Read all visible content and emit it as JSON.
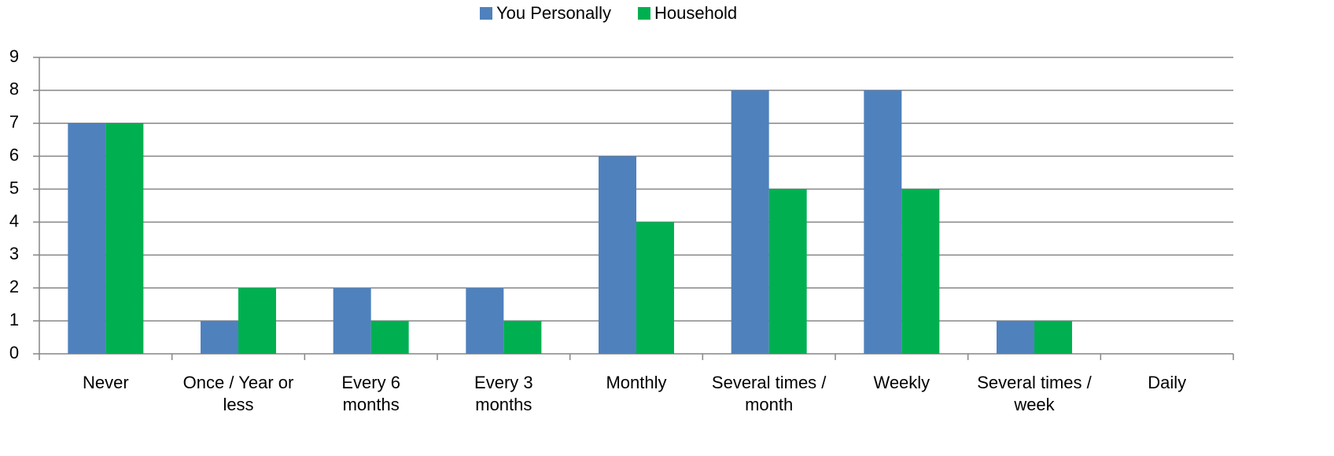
{
  "chart_data": {
    "type": "bar",
    "categories": [
      "Never",
      "Once / Year or less",
      "Every 6 months",
      "Every 3 months",
      "Monthly",
      "Several times / month",
      "Weekly",
      "Several times / week",
      "Daily"
    ],
    "series": [
      {
        "name": "You Personally",
        "color": "#4f81bd",
        "values": [
          7,
          1,
          2,
          2,
          6,
          8,
          8,
          1,
          0
        ]
      },
      {
        "name": "Household",
        "color": "#00b050",
        "values": [
          7,
          2,
          1,
          1,
          4,
          5,
          5,
          1,
          0
        ]
      }
    ],
    "ylim": [
      0,
      9
    ],
    "yticks": [
      0,
      1,
      2,
      3,
      4,
      5,
      6,
      7,
      8,
      9
    ],
    "grid": true,
    "legend": "top"
  }
}
